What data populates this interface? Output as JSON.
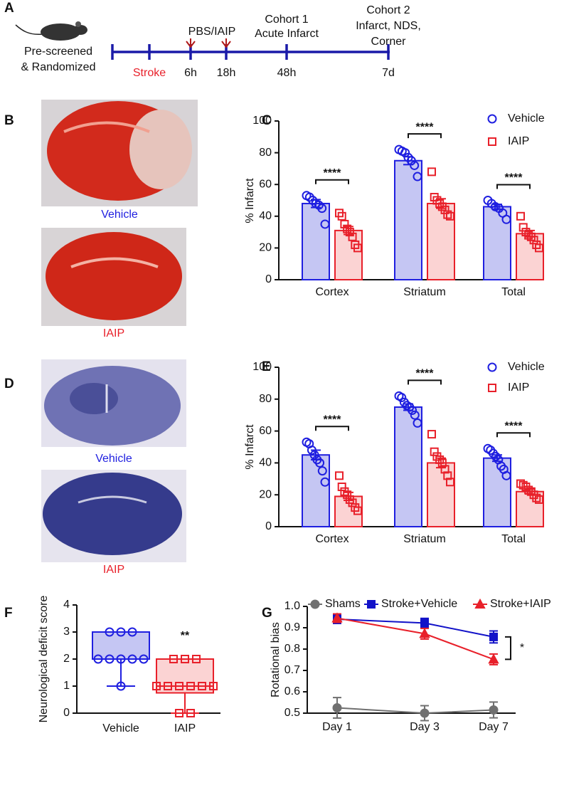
{
  "panel_labels": [
    "A",
    "B",
    "C",
    "D",
    "E",
    "F",
    "G"
  ],
  "timeline": {
    "left_text": [
      "Pre-screened",
      "& Randomized"
    ],
    "stroke": "Stroke",
    "times": [
      "6h",
      "18h",
      "48h",
      "7d"
    ],
    "treatment": "PBS/IAIP",
    "cohort1": [
      "Cohort 1",
      "Acute Infarct"
    ],
    "cohort2": [
      "Cohort 2",
      "Infarct, NDS,",
      "Corner"
    ]
  },
  "images": {
    "b_captions": [
      "Vehicle",
      "IAIP"
    ],
    "d_captions": [
      "Vehicle",
      "IAIP"
    ]
  },
  "chart_data": [
    {
      "type": "bar",
      "ylabel": "% Infarct",
      "categories": [
        "Cortex",
        "Striatum",
        "Total"
      ],
      "ylim": [
        0,
        100
      ],
      "yticks": [
        0,
        20,
        40,
        60,
        80,
        100
      ],
      "series": [
        {
          "name": "Vehicle",
          "color": "#1f1fe0",
          "fill": "#c5c6f3",
          "marker": "circle",
          "values": [
            48,
            75,
            46
          ],
          "errors": [
            2.5,
            2.5,
            1.5
          ],
          "points": [
            [
              53,
              52,
              50,
              48,
              47,
              45,
              35
            ],
            [
              82,
              81,
              80,
              77,
              75,
              72,
              65
            ],
            [
              50,
              48,
              46,
              45,
              42,
              38
            ]
          ]
        },
        {
          "name": "IAIP",
          "color": "#e8202a",
          "fill": "#fbd3d3",
          "marker": "square",
          "values": [
            31,
            48,
            29
          ],
          "errors": [
            2.5,
            3,
            2
          ],
          "points": [
            [
              42,
              40,
              35,
              32,
              30,
              27,
              22,
              20
            ],
            [
              68,
              52,
              50,
              48,
              46,
              44,
              41,
              40
            ],
            [
              40,
              33,
              30,
              28,
              27,
              25,
              22,
              20
            ]
          ]
        }
      ],
      "annotations": [
        "****",
        "****",
        "****"
      ]
    },
    {
      "type": "bar",
      "ylabel": "% Infarct",
      "categories": [
        "Cortex",
        "Striatum",
        "Total"
      ],
      "ylim": [
        0,
        100
      ],
      "yticks": [
        0,
        20,
        40,
        60,
        80,
        100
      ],
      "series": [
        {
          "name": "Vehicle",
          "color": "#1f1fe0",
          "fill": "#c5c6f3",
          "marker": "circle",
          "values": [
            45,
            75,
            43
          ],
          "errors": [
            3,
            2,
            2
          ],
          "points": [
            [
              53,
              52,
              48,
              45,
              42,
              40,
              35,
              28
            ],
            [
              82,
              81,
              78,
              76,
              75,
              73,
              70,
              65
            ],
            [
              49,
              48,
              46,
              44,
              42,
              38,
              36,
              32
            ]
          ]
        },
        {
          "name": "IAIP",
          "color": "#e8202a",
          "fill": "#fbd3d3",
          "marker": "square",
          "values": [
            19,
            40,
            22
          ],
          "errors": [
            2.5,
            3,
            1.5
          ],
          "points": [
            [
              32,
              25,
              22,
              20,
              17,
              15,
              12,
              10
            ],
            [
              58,
              47,
              44,
              42,
              40,
              36,
              32,
              28
            ],
            [
              27,
              26,
              25,
              23,
              22,
              20,
              18,
              17
            ]
          ]
        }
      ],
      "annotations": [
        "****",
        "****",
        "****"
      ]
    },
    {
      "type": "box",
      "ylabel": "Neurological deficit score",
      "categories": [
        "Vehicle",
        "IAIP"
      ],
      "ylim": [
        0,
        4
      ],
      "yticks": [
        0,
        1,
        2,
        3,
        4
      ],
      "boxes": [
        {
          "color": "#1f1fe0",
          "fill": "#c5c6f3",
          "marker": "circle",
          "min": 1,
          "q1": 2,
          "median": 2,
          "q3": 3,
          "max": 3,
          "points": [
            3,
            3,
            3,
            2,
            2,
            2,
            2,
            2,
            1
          ]
        },
        {
          "color": "#e8202a",
          "fill": "#fbd3d3",
          "marker": "square",
          "min": 0,
          "q1": 0.75,
          "median": 1,
          "q3": 2,
          "max": 2,
          "points": [
            2,
            2,
            2,
            1,
            1,
            1,
            1,
            1,
            1,
            0,
            0
          ]
        }
      ],
      "annotations": [
        null,
        "**"
      ]
    },
    {
      "type": "line",
      "ylabel": "Rotational bias",
      "categories": [
        "Day 1",
        "Day 3",
        "Day 7"
      ],
      "ylim": [
        0.5,
        1.0
      ],
      "yticks": [
        0.5,
        0.6,
        0.7,
        0.8,
        0.9,
        {
          "value": 1.0,
          "label": "1.0"
        }
      ],
      "legend": "top",
      "series": [
        {
          "name": "Shams",
          "color": "#707070",
          "marker": "circle",
          "values": [
            0.525,
            0.5,
            0.515
          ],
          "errors": [
            0.048,
            0.035,
            0.037
          ]
        },
        {
          "name": "Stroke+Vehicle",
          "color": "#1212c8",
          "marker": "square",
          "values": [
            0.94,
            0.922,
            0.857
          ],
          "errors": [
            0.02,
            0.022,
            0.028
          ]
        },
        {
          "name": "Stroke+IAIP",
          "color": "#e8202a",
          "marker": "triangle",
          "values": [
            0.945,
            0.872,
            0.752
          ],
          "errors": [
            0.02,
            0.025,
            0.025
          ]
        }
      ],
      "annotation": "*"
    }
  ]
}
